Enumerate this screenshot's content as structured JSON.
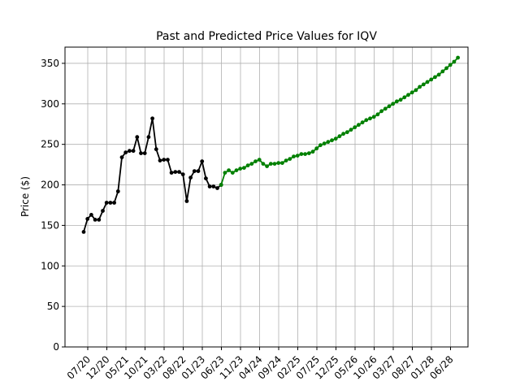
{
  "chart_data": {
    "type": "line",
    "title": "Past and Predicted Price Values for IQV",
    "xlabel": "",
    "ylabel": "Price ($)",
    "ylim": [
      0,
      370
    ],
    "yticks": [
      0,
      50,
      100,
      150,
      200,
      250,
      300,
      350
    ],
    "grid": true,
    "xticks": [
      "07/20",
      "12/20",
      "05/21",
      "10/21",
      "03/22",
      "08/22",
      "01/23",
      "06/23",
      "11/23",
      "04/24",
      "09/24",
      "02/25",
      "07/25",
      "12/25",
      "05/26",
      "10/26",
      "03/27",
      "08/27",
      "01/28",
      "06/28"
    ],
    "series": [
      {
        "color": "#000000",
        "values": [
          142,
          158,
          163,
          157,
          157,
          168,
          178,
          178,
          178,
          192,
          234,
          240,
          242,
          242,
          259,
          239,
          239,
          259,
          282,
          244,
          230,
          231,
          231,
          215,
          216,
          216,
          213,
          180,
          209,
          217,
          217,
          229,
          208,
          198,
          198,
          196,
          200
        ]
      },
      {
        "color": "#008000",
        "values": [
          200,
          215,
          218,
          215,
          218,
          220,
          221,
          224,
          226,
          229,
          231,
          226,
          223,
          226,
          226,
          227,
          227,
          230,
          232,
          235,
          236,
          238,
          238,
          239,
          241,
          245,
          249,
          251,
          253,
          255,
          257,
          260,
          263,
          265,
          268,
          271,
          274,
          277,
          280,
          282,
          284,
          287,
          291,
          294,
          297,
          300,
          303,
          305,
          308,
          311,
          314,
          317,
          321,
          324,
          327,
          330,
          333,
          336,
          340,
          344,
          348,
          352,
          357
        ]
      }
    ]
  }
}
